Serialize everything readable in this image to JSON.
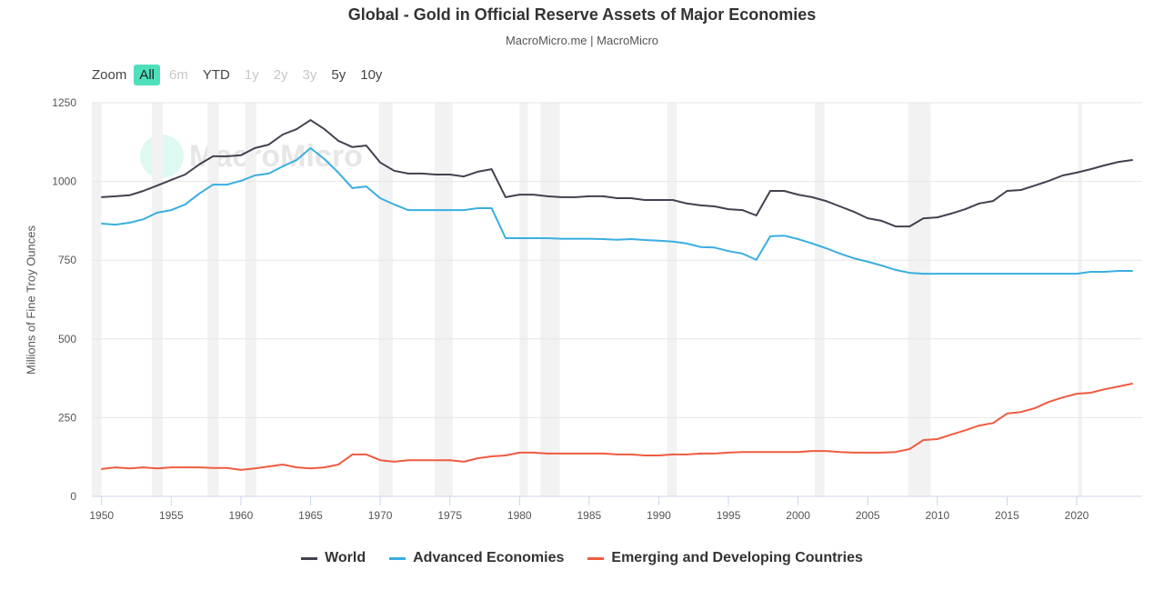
{
  "header": {
    "title": "Global - Gold in Official Reserve Assets of Major Economies",
    "subtitle": "MacroMicro.me | MacroMicro"
  },
  "zoom": {
    "label": "Zoom",
    "buttons": [
      {
        "label": "All",
        "state": "active"
      },
      {
        "label": "6m",
        "state": "disabled"
      },
      {
        "label": "YTD",
        "state": "enabled"
      },
      {
        "label": "1y",
        "state": "disabled"
      },
      {
        "label": "2y",
        "state": "disabled"
      },
      {
        "label": "3y",
        "state": "disabled"
      },
      {
        "label": "5y",
        "state": "enabled"
      },
      {
        "label": "10y",
        "state": "enabled"
      }
    ]
  },
  "watermark_logo": "MacroMicro",
  "chart_data": {
    "type": "line",
    "title": "Global - Gold in Official Reserve Assets of Major Economies",
    "subtitle": "MacroMicro.me | MacroMicro",
    "xlabel": "",
    "ylabel": "Millions of Fine Troy Ounces",
    "xlim": [
      1949.3,
      2024.7
    ],
    "ylim": [
      0,
      1250
    ],
    "yticks": [
      0,
      250,
      500,
      750,
      1000,
      1250
    ],
    "xticks": [
      1950,
      1955,
      1960,
      1965,
      1970,
      1975,
      1980,
      1985,
      1990,
      1995,
      2000,
      2005,
      2010,
      2015,
      2020
    ],
    "grid": "horizontal",
    "legend": "bottom",
    "shaded_periods": [
      [
        1949.3,
        1950
      ],
      [
        1953.6,
        1954.4
      ],
      [
        1957.6,
        1958.4
      ],
      [
        1960.3,
        1961.1
      ],
      [
        1969.9,
        1970.9
      ],
      [
        1973.9,
        1975.2
      ],
      [
        1980.0,
        1980.6
      ],
      [
        1981.5,
        1982.9
      ],
      [
        1990.6,
        1991.3
      ],
      [
        2001.2,
        2001.9
      ],
      [
        2007.9,
        2009.5
      ],
      [
        2020.1,
        2020.4
      ]
    ],
    "x": [
      1950,
      1951,
      1952,
      1953,
      1954,
      1955,
      1956,
      1957,
      1958,
      1959,
      1960,
      1961,
      1962,
      1963,
      1964,
      1965,
      1966,
      1967,
      1968,
      1969,
      1970,
      1971,
      1972,
      1973,
      1974,
      1975,
      1976,
      1977,
      1978,
      1979,
      1980,
      1981,
      1982,
      1983,
      1984,
      1985,
      1986,
      1987,
      1988,
      1989,
      1990,
      1991,
      1992,
      1993,
      1994,
      1995,
      1996,
      1997,
      1998,
      1999,
      2000,
      2001,
      2002,
      2003,
      2004,
      2005,
      2006,
      2007,
      2008,
      2009,
      2010,
      2011,
      2012,
      2013,
      2014,
      2015,
      2016,
      2017,
      2018,
      2019,
      2020,
      2021,
      2022,
      2023,
      2024
    ],
    "series": [
      {
        "name": "World",
        "color": "#40424f",
        "values": [
          950,
          953,
          956,
          970,
          987,
          1005,
          1022,
          1054,
          1080,
          1080,
          1083,
          1106,
          1117,
          1149,
          1166,
          1195,
          1166,
          1129,
          1109,
          1114,
          1060,
          1034,
          1025,
          1025,
          1022,
          1022,
          1016,
          1031,
          1039,
          950,
          958,
          958,
          953,
          950,
          950,
          953,
          953,
          947,
          947,
          941,
          941,
          941,
          930,
          924,
          921,
          912,
          909,
          892,
          970,
          970,
          958,
          950,
          938,
          921,
          904,
          883,
          875,
          857,
          857,
          883,
          886,
          898,
          912,
          930,
          938,
          970,
          973,
          987,
          1002,
          1019,
          1028,
          1039,
          1051,
          1062,
          1068
        ]
      },
      {
        "name": "Advanced Economies",
        "color": "#3aaee0",
        "values": [
          866,
          863,
          869,
          880,
          901,
          909,
          927,
          961,
          990,
          990,
          1002,
          1019,
          1025,
          1048,
          1068,
          1106,
          1071,
          1028,
          979,
          984,
          947,
          927,
          909,
          909,
          909,
          909,
          909,
          915,
          915,
          820,
          820,
          820,
          820,
          818,
          818,
          818,
          817,
          815,
          817,
          814,
          812,
          809,
          803,
          792,
          790,
          779,
          771,
          751,
          826,
          828,
          817,
          803,
          788,
          771,
          756,
          745,
          733,
          719,
          710,
          707,
          707,
          707,
          707,
          707,
          707,
          707,
          707,
          707,
          707,
          707,
          707,
          713,
          713,
          716,
          716
        ]
      },
      {
        "name": "Emerging and Developing Countries",
        "color": "#ef5b41",
        "values": [
          87,
          92,
          89,
          92,
          89,
          92,
          92,
          92,
          90,
          90,
          84,
          89,
          95,
          101,
          92,
          89,
          92,
          101,
          133,
          133,
          115,
          110,
          115,
          115,
          115,
          115,
          110,
          121,
          127,
          130,
          139,
          139,
          136,
          136,
          136,
          136,
          136,
          133,
          133,
          130,
          130,
          133,
          133,
          136,
          136,
          139,
          141,
          141,
          141,
          141,
          141,
          144,
          144,
          141,
          139,
          139,
          139,
          141,
          150,
          179,
          182,
          196,
          210,
          225,
          233,
          263,
          268,
          280,
          300,
          314,
          326,
          329,
          340,
          349,
          358
        ]
      }
    ]
  }
}
